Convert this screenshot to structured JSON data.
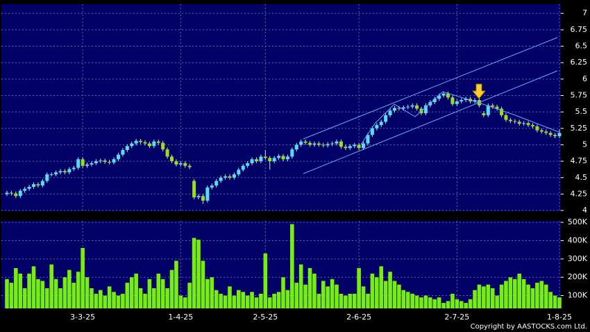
{
  "chart_data": [
    {
      "type": "candlestick",
      "categories": [
        null,
        null,
        null,
        null,
        null,
        null,
        null,
        null,
        null,
        null,
        null,
        null,
        null,
        null,
        null,
        null,
        null,
        "3-3-25",
        null,
        null,
        null,
        null,
        null,
        null,
        null,
        null,
        null,
        null,
        null,
        null,
        null,
        null,
        null,
        null,
        null,
        null,
        null,
        null,
        null,
        "1-4-25",
        null,
        null,
        null,
        null,
        null,
        null,
        null,
        null,
        null,
        null,
        null,
        null,
        null,
        null,
        null,
        null,
        null,
        null,
        "2-5-25",
        null,
        null,
        null,
        null,
        null,
        null,
        null,
        null,
        null,
        null,
        null,
        null,
        null,
        null,
        null,
        null,
        null,
        null,
        null,
        null,
        "2-6-25",
        null,
        null,
        null,
        null,
        null,
        null,
        null,
        null,
        null,
        null,
        null,
        null,
        null,
        null,
        null,
        null,
        null,
        null,
        null,
        null,
        null,
        "2-7-25",
        null,
        null,
        null,
        null,
        null,
        null,
        null,
        null,
        null,
        null,
        null,
        null,
        null,
        null,
        null,
        null,
        null,
        null,
        null,
        null,
        null,
        null,
        "1-8-25"
      ],
      "open": [
        4.25,
        4.27,
        4.26,
        4.22,
        4.3,
        4.33,
        4.36,
        4.4,
        4.38,
        4.45,
        4.55,
        4.55,
        4.58,
        4.6,
        4.58,
        4.63,
        4.65,
        4.78,
        4.68,
        4.7,
        4.72,
        4.75,
        4.76,
        4.74,
        4.73,
        4.78,
        4.85,
        4.92,
        4.98,
        5.02,
        5.06,
        5.04,
        5.02,
        4.98,
        5.05,
        5.03,
        4.93,
        4.82,
        4.75,
        4.7,
        4.72,
        4.68,
        4.45,
        4.2,
        4.22,
        4.15,
        4.35,
        4.38,
        4.45,
        4.5,
        4.52,
        4.5,
        4.55,
        4.62,
        4.68,
        4.72,
        4.78,
        4.75,
        4.82,
        4.8,
        4.75,
        4.8,
        4.83,
        4.78,
        4.82,
        4.93,
        5.0,
        5.05,
        5.03,
        5.0,
        5.02,
        5.0,
        4.99,
        5.01,
        5.02,
        5.05,
        4.97,
        4.95,
        4.98,
        5.0,
        4.95,
        5.02,
        5.15,
        5.25,
        5.3,
        5.35,
        5.45,
        5.52,
        5.56,
        5.55,
        5.57,
        5.58,
        5.6,
        5.55,
        5.48,
        5.6,
        5.65,
        5.7,
        5.75,
        5.78,
        5.72,
        5.62,
        5.66,
        5.68,
        5.7,
        5.66,
        5.68,
        5.48,
        5.45,
        5.6,
        5.58,
        5.55,
        5.45,
        5.38,
        5.36,
        5.35,
        5.32,
        5.33,
        5.3,
        5.28,
        5.22,
        5.2,
        5.18,
        5.15,
        5.13
      ],
      "high": [
        4.3,
        4.3,
        4.29,
        4.33,
        4.36,
        4.39,
        4.43,
        4.43,
        4.48,
        4.58,
        4.58,
        4.61,
        4.63,
        4.63,
        4.66,
        4.68,
        4.81,
        4.81,
        4.73,
        4.75,
        4.78,
        4.79,
        4.79,
        4.77,
        4.81,
        4.88,
        4.95,
        5.01,
        5.05,
        5.09,
        5.09,
        5.07,
        5.05,
        5.08,
        5.08,
        5.06,
        4.96,
        4.85,
        4.78,
        4.75,
        4.75,
        4.71,
        4.48,
        4.25,
        4.25,
        4.38,
        4.41,
        4.48,
        4.53,
        4.55,
        4.55,
        4.58,
        4.65,
        4.71,
        4.75,
        4.81,
        4.81,
        4.85,
        4.92,
        4.83,
        4.83,
        4.86,
        4.86,
        4.85,
        4.96,
        5.03,
        5.08,
        5.08,
        5.06,
        5.05,
        5.05,
        5.03,
        5.04,
        5.05,
        5.08,
        5.08,
        5.0,
        5.01,
        5.03,
        5.03,
        5.05,
        5.18,
        5.28,
        5.33,
        5.38,
        5.48,
        5.55,
        5.59,
        5.59,
        5.6,
        5.61,
        5.63,
        5.63,
        5.58,
        5.63,
        5.68,
        5.73,
        5.78,
        5.81,
        5.81,
        5.75,
        5.69,
        5.71,
        5.73,
        5.73,
        5.71,
        5.71,
        5.51,
        5.63,
        5.63,
        5.61,
        5.58,
        5.48,
        5.41,
        5.39,
        5.38,
        5.36,
        5.36,
        5.33,
        5.31,
        5.25,
        5.23,
        5.21,
        5.18,
        5.24
      ],
      "low": [
        4.22,
        4.23,
        4.19,
        4.19,
        4.27,
        4.3,
        4.33,
        4.35,
        4.35,
        4.42,
        4.52,
        4.52,
        4.55,
        4.55,
        4.55,
        4.6,
        4.62,
        4.65,
        4.65,
        4.67,
        4.69,
        4.72,
        4.71,
        4.7,
        4.7,
        4.75,
        4.82,
        4.89,
        4.95,
        4.99,
        5.01,
        4.99,
        4.95,
        4.95,
        5.0,
        4.9,
        4.79,
        4.72,
        4.67,
        4.67,
        4.65,
        4.63,
        4.17,
        4.17,
        4.1,
        4.12,
        4.32,
        4.35,
        4.42,
        4.47,
        4.47,
        4.47,
        4.52,
        4.59,
        4.65,
        4.69,
        4.72,
        4.72,
        4.77,
        4.62,
        4.72,
        4.77,
        4.75,
        4.75,
        4.79,
        4.9,
        4.97,
        5.0,
        4.97,
        4.97,
        4.97,
        4.96,
        4.96,
        4.98,
        4.99,
        4.94,
        4.92,
        4.92,
        4.95,
        4.92,
        4.92,
        4.99,
        5.12,
        5.22,
        5.27,
        5.32,
        5.42,
        5.49,
        5.52,
        5.52,
        5.54,
        5.55,
        5.52,
        5.45,
        5.45,
        5.57,
        5.62,
        5.67,
        5.72,
        5.69,
        5.59,
        5.59,
        5.63,
        5.65,
        5.63,
        5.63,
        5.57,
        5.42,
        5.42,
        5.55,
        5.52,
        5.42,
        5.35,
        5.33,
        5.32,
        5.29,
        5.29,
        5.27,
        5.25,
        5.19,
        5.17,
        5.15,
        5.12,
        5.1,
        5.1
      ],
      "close": [
        4.27,
        4.26,
        4.22,
        4.3,
        4.33,
        4.36,
        4.4,
        4.38,
        4.45,
        4.55,
        4.55,
        4.58,
        4.6,
        4.58,
        4.63,
        4.65,
        4.78,
        4.68,
        4.7,
        4.72,
        4.75,
        4.76,
        4.74,
        4.73,
        4.78,
        4.85,
        4.92,
        4.98,
        5.02,
        5.06,
        5.04,
        5.02,
        4.98,
        5.05,
        5.03,
        4.93,
        4.82,
        4.75,
        4.7,
        4.72,
        4.68,
        4.66,
        4.2,
        4.22,
        4.15,
        4.35,
        4.38,
        4.45,
        4.5,
        4.52,
        4.5,
        4.55,
        4.62,
        4.68,
        4.72,
        4.78,
        4.75,
        4.82,
        4.8,
        4.75,
        4.8,
        4.83,
        4.78,
        4.82,
        4.93,
        5.0,
        5.05,
        5.03,
        5.0,
        5.02,
        5.0,
        4.99,
        5.01,
        5.02,
        5.05,
        4.97,
        4.95,
        4.98,
        5.0,
        4.95,
        5.02,
        5.15,
        5.25,
        5.3,
        5.35,
        5.45,
        5.52,
        5.56,
        5.55,
        5.57,
        5.58,
        5.6,
        5.55,
        5.48,
        5.6,
        5.65,
        5.7,
        5.75,
        5.78,
        5.72,
        5.62,
        5.66,
        5.68,
        5.7,
        5.66,
        5.68,
        5.6,
        5.45,
        5.6,
        5.58,
        5.55,
        5.45,
        5.38,
        5.36,
        5.35,
        5.32,
        5.33,
        5.3,
        5.28,
        5.22,
        5.2,
        5.18,
        5.15,
        5.13,
        5.18
      ],
      "up_color": "#55ddff",
      "down_color": "#99dd22",
      "ylim": [
        3.99,
        7.14
      ],
      "yticks": [
        4,
        4.25,
        4.5,
        4.75,
        5,
        5.25,
        5.5,
        5.75,
        6,
        6.25,
        6.5,
        6.75,
        7
      ],
      "grid": true
    },
    {
      "type": "bar",
      "values": [
        190000,
        170000,
        250000,
        220000,
        140000,
        220000,
        260000,
        190000,
        180000,
        140000,
        270000,
        190000,
        140000,
        200000,
        240000,
        170000,
        230000,
        360000,
        200000,
        140000,
        110000,
        130000,
        100000,
        150000,
        120000,
        100000,
        110000,
        170000,
        200000,
        220000,
        140000,
        110000,
        190000,
        140000,
        220000,
        190000,
        140000,
        240000,
        290000,
        100000,
        90000,
        170000,
        415000,
        405000,
        290000,
        190000,
        200000,
        130000,
        110000,
        100000,
        150000,
        100000,
        130000,
        120000,
        100000,
        120000,
        90000,
        110000,
        330000,
        90000,
        110000,
        120000,
        200000,
        130000,
        490000,
        170000,
        270000,
        160000,
        250000,
        220000,
        110000,
        180000,
        150000,
        190000,
        160000,
        110000,
        100000,
        110000,
        110000,
        250000,
        150000,
        110000,
        220000,
        200000,
        260000,
        180000,
        230000,
        180000,
        160000,
        130000,
        120000,
        110000,
        100000,
        90000,
        100000,
        90000,
        80000,
        90000,
        60000,
        70000,
        110000,
        80000,
        70000,
        60000,
        80000,
        130000,
        160000,
        150000,
        160000,
        140000,
        100000,
        160000,
        180000,
        200000,
        190000,
        220000,
        190000,
        160000,
        140000,
        170000,
        180000,
        160000,
        120000,
        100000,
        90000
      ],
      "color": "#77ee11",
      "ylim": [
        30000,
        508000
      ],
      "yticks": [
        {
          "value": 100000,
          "label": "100K"
        },
        {
          "value": 200000,
          "label": "200K"
        },
        {
          "value": 300000,
          "label": "300K"
        },
        {
          "value": 400000,
          "label": "400K"
        },
        {
          "value": 500000,
          "label": "500K"
        }
      ],
      "grid": true
    }
  ],
  "footer": "Copyright by AASTOCKS.com Ltd."
}
